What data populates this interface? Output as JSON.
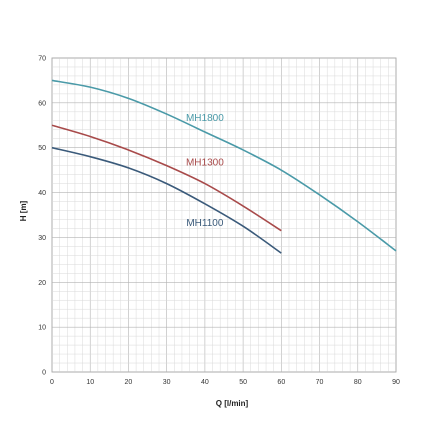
{
  "chart_data": {
    "type": "line",
    "title": "",
    "xlabel": "Q [l/min]",
    "ylabel": "H [m]",
    "xlim": [
      0,
      90
    ],
    "ylim": [
      0,
      70
    ],
    "xticks": [
      0,
      10,
      20,
      30,
      40,
      50,
      60,
      70,
      80,
      90
    ],
    "yticks": [
      0,
      10,
      20,
      30,
      40,
      50,
      60,
      70
    ],
    "grid": true,
    "series": [
      {
        "name": "MH1800",
        "color": "#4a9aa8",
        "x": [
          0,
          10,
          20,
          30,
          40,
          50,
          60,
          70,
          80,
          90
        ],
        "y": [
          65,
          63.5,
          61,
          57.5,
          53.5,
          49.5,
          45,
          39.5,
          33.5,
          27
        ]
      },
      {
        "name": "MH1300",
        "color": "#a84a4a",
        "x": [
          0,
          10,
          20,
          30,
          40,
          50,
          60
        ],
        "y": [
          55,
          52.5,
          49.5,
          46,
          42,
          37,
          31.5
        ]
      },
      {
        "name": "MH1100",
        "color": "#3a5a7a",
        "x": [
          0,
          10,
          20,
          30,
          40,
          50,
          60
        ],
        "y": [
          50,
          48,
          45.5,
          42,
          37.5,
          32.5,
          26.5
        ]
      }
    ]
  }
}
